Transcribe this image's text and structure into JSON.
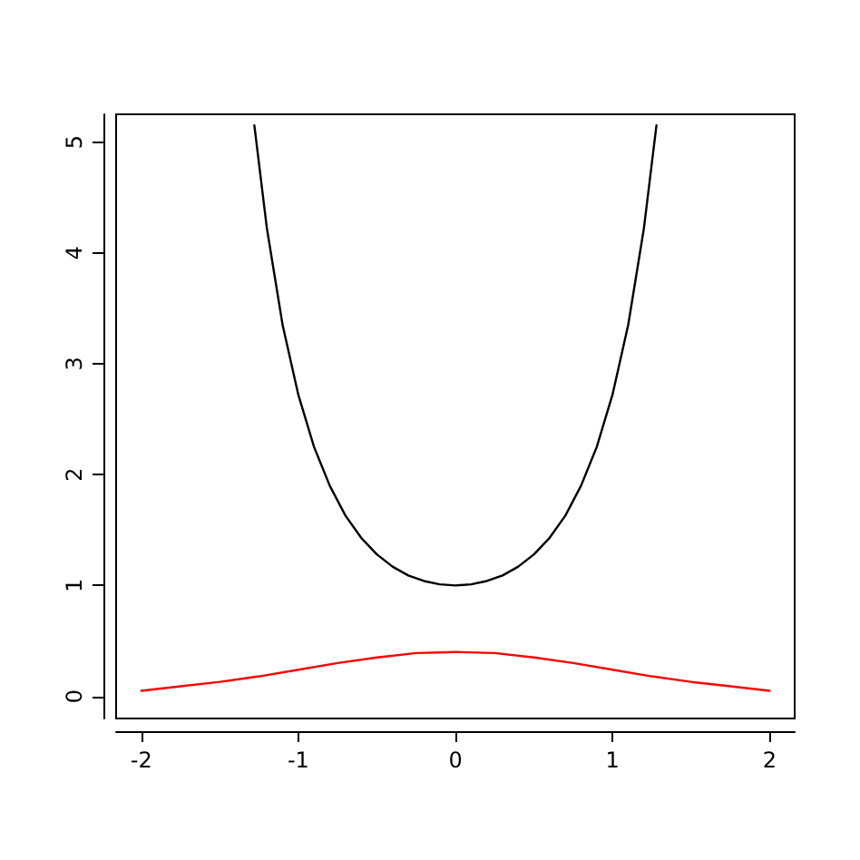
{
  "chart_data": {
    "type": "line",
    "xlim": [
      -2.16,
      2.16
    ],
    "ylim": [
      -0.2,
      5.25
    ],
    "xticks": [
      -2,
      -1,
      0,
      1,
      2
    ],
    "yticks": [
      0,
      1,
      2,
      3,
      4,
      5
    ],
    "grid": false,
    "marker": "none",
    "line_style": "solid",
    "series": [
      {
        "color": "#000000",
        "x": [
          -1.28,
          -1.2,
          -1.1,
          -1.0,
          -0.9,
          -0.8,
          -0.7,
          -0.6,
          -0.5,
          -0.4,
          -0.3,
          -0.2,
          -0.1,
          0,
          0.1,
          0.2,
          0.3,
          0.4,
          0.5,
          0.6,
          0.7,
          0.8,
          0.9,
          1.0,
          1.1,
          1.2,
          1.28
        ],
        "values": [
          5.15,
          4.22,
          3.35,
          2.72,
          2.25,
          1.9,
          1.63,
          1.43,
          1.28,
          1.17,
          1.09,
          1.04,
          1.01,
          1,
          1.01,
          1.04,
          1.09,
          1.17,
          1.28,
          1.43,
          1.63,
          1.9,
          2.25,
          2.72,
          3.35,
          4.22,
          5.15
        ]
      },
      {
        "color": "#ff0000",
        "x": [
          -2,
          -1.75,
          -1.5,
          -1.25,
          -1,
          -0.75,
          -0.5,
          -0.25,
          0,
          0.25,
          0.5,
          0.75,
          1,
          1.25,
          1.5,
          1.75,
          2
        ],
        "values": [
          0.05,
          0.09,
          0.13,
          0.18,
          0.24,
          0.3,
          0.35,
          0.39,
          0.4,
          0.39,
          0.35,
          0.3,
          0.24,
          0.18,
          0.13,
          0.09,
          0.05
        ]
      }
    ]
  }
}
